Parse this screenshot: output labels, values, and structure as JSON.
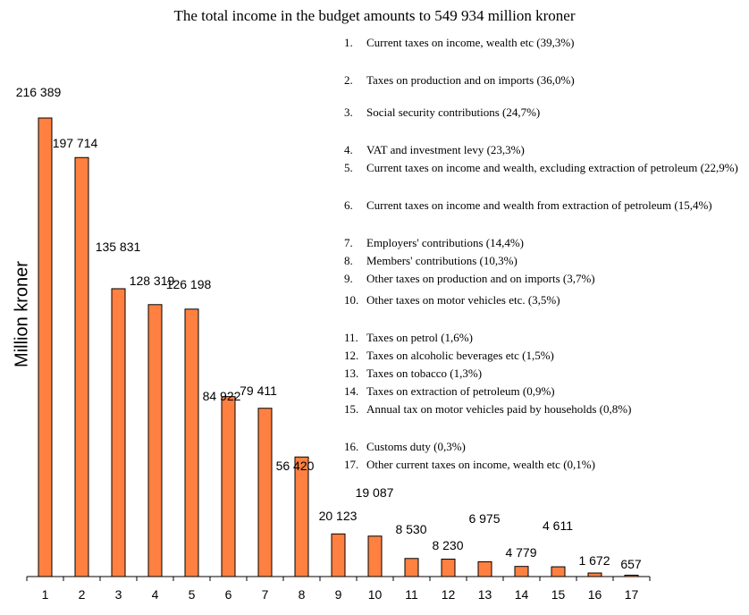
{
  "chart_data": {
    "type": "bar",
    "title": "The total income in the budget amounts to 549 934 million kroner",
    "xlabel": "",
    "ylabel": "Million kroner",
    "categories": [
      "1",
      "2",
      "3",
      "4",
      "5",
      "6",
      "7",
      "8",
      "9",
      "10",
      "11",
      "12",
      "13",
      "14",
      "15",
      "16",
      "17"
    ],
    "values": [
      216389,
      197714,
      135831,
      128319,
      126198,
      84922,
      79411,
      56420,
      20123,
      19087,
      8530,
      8230,
      6975,
      4779,
      4611,
      1672,
      657
    ],
    "data_labels": [
      "216 389",
      "197 714",
      "135 831",
      "128 319",
      "126 198",
      "84 922",
      "79 411",
      "56 420",
      "20 123",
      "19 087",
      "8 530",
      "8 230",
      "6 975",
      "4 779",
      "4 611",
      "1 672",
      "657"
    ],
    "ylim": [
      0,
      216389
    ],
    "grid": false,
    "bar_color": "#ff8040",
    "legend_placement": "right",
    "legend": [
      {
        "num": "1.",
        "text": "Current taxes on income, wealth etc (39,3%)"
      },
      {
        "num": "2.",
        "text": "Taxes on production and on imports (36,0%)"
      },
      {
        "num": "3.",
        "text": "Social security contributions (24,7%)"
      },
      {
        "num": "4.",
        "text": "VAT and investment levy (23,3%)"
      },
      {
        "num": "5.",
        "text": "Current taxes on income and wealth, excluding extraction of petroleum (22,9%)"
      },
      {
        "num": "6.",
        "text": "Current taxes on income and wealth from extraction of petroleum (15,4%)"
      },
      {
        "num": "7.",
        "text": "Employers' contributions (14,4%)"
      },
      {
        "num": "8.",
        "text": "Members' contributions (10,3%)"
      },
      {
        "num": "9.",
        "text": "Other taxes on production and on imports (3,7%)"
      },
      {
        "num": "10.",
        "text": "Other taxes on motor vehicles etc. (3,5%)"
      },
      {
        "num": "11.",
        "text": "Taxes on petrol (1,6%)"
      },
      {
        "num": "12.",
        "text": "Taxes on alcoholic beverages etc (1,5%)"
      },
      {
        "num": "13.",
        "text": "Taxes on tobacco (1,3%)"
      },
      {
        "num": "14.",
        "text": "Taxes on extraction of petroleum (0,9%)"
      },
      {
        "num": "15.",
        "text": "Annual tax on motor vehicles paid by households (0,8%)"
      },
      {
        "num": "16.",
        "text": "Customs duty (0,3%)"
      },
      {
        "num": "17.",
        "text": "Other current taxes on income, wealth etc (0,1%)"
      }
    ]
  }
}
